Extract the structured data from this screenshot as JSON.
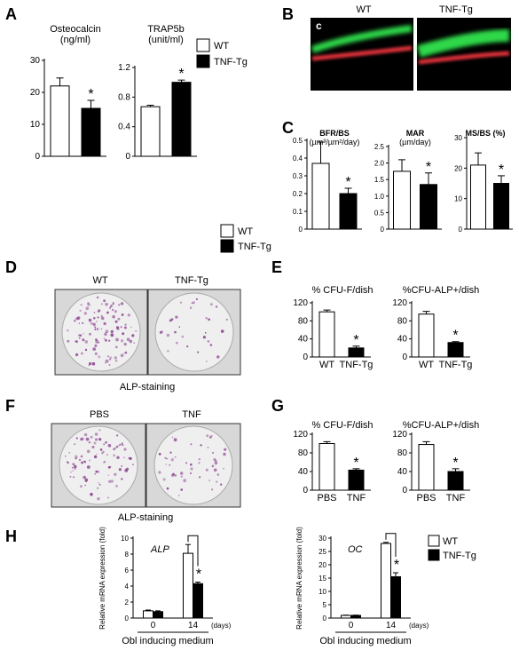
{
  "panels": {
    "A": "A",
    "B": "B",
    "C": "C",
    "D": "D",
    "E": "E",
    "F": "F",
    "G": "G",
    "H": "H"
  },
  "legend_top": {
    "items": [
      {
        "label": "WT",
        "fill": "#ffffff"
      },
      {
        "label": "TNF-Tg",
        "fill": "#000000"
      }
    ]
  },
  "legend_c": {
    "items": [
      {
        "label": "WT",
        "fill": "#ffffff"
      },
      {
        "label": "TNF-Tg",
        "fill": "#000000"
      }
    ]
  },
  "legend_h": {
    "items": [
      {
        "label": "WT",
        "fill": "#ffffff"
      },
      {
        "label": "TNF-Tg",
        "fill": "#000000"
      }
    ]
  },
  "micrograph_b": {
    "letter": "c",
    "left_label": "WT",
    "right_label": "TNF-Tg",
    "colors": {
      "green": "#2fd84a",
      "red": "#e0303a",
      "bg": "#000000"
    }
  },
  "plates_d": {
    "left_label": "WT",
    "right_label": "TNF-Tg",
    "caption": "ALP-staining",
    "dot_color": "#8a3f8f"
  },
  "plates_f": {
    "left_label": "PBS",
    "right_label": "TNF",
    "caption": "ALP-staining",
    "dot_color": "#8a3f8f"
  },
  "significance_marker": "*",
  "chart_data": [
    {
      "type": "bar",
      "panel": "A",
      "title": "Osteocalcin",
      "unit": "(ng/ml)",
      "categories": [
        "WT",
        "TNF-Tg"
      ],
      "values": [
        22,
        15
      ],
      "errors": [
        2.5,
        2.5
      ],
      "significant": [
        false,
        true
      ],
      "ylim": [
        0,
        30
      ],
      "yticks": [
        0,
        10,
        20,
        30
      ],
      "show_xlabels": false
    },
    {
      "type": "bar",
      "panel": "A",
      "title": "TRAP5b",
      "unit": "(unit/ml)",
      "categories": [
        "WT",
        "TNF-Tg"
      ],
      "values": [
        0.67,
        1.0
      ],
      "errors": [
        0.02,
        0.03
      ],
      "significant": [
        false,
        true
      ],
      "ylim": [
        0,
        1.2
      ],
      "yticks": [
        "0",
        "0.4",
        "0.8",
        "1.2"
      ],
      "show_xlabels": false
    },
    {
      "type": "bar",
      "panel": "C",
      "title": "BFR/BS",
      "unit": "(µm³/µm²/day)",
      "categories": [
        "WT",
        "TNF-Tg"
      ],
      "values": [
        0.37,
        0.2
      ],
      "errors": [
        0.12,
        0.03
      ],
      "significant": [
        false,
        true
      ],
      "ylim": [
        0,
        0.5
      ],
      "yticks": [
        "0",
        "0.1",
        "0.2",
        "0.3",
        "0.4",
        "0.5"
      ],
      "show_xlabels": false
    },
    {
      "type": "bar",
      "panel": "C",
      "title": "MAR",
      "unit": "(µm/day)",
      "categories": [
        "WT",
        "TNF-Tg"
      ],
      "values": [
        1.75,
        1.35
      ],
      "errors": [
        0.35,
        0.35
      ],
      "significant": [
        false,
        true
      ],
      "ylim": [
        0,
        2.5
      ],
      "yticks": [
        "0",
        "0.5",
        "1.0",
        "1.5",
        "2.0",
        "2.5"
      ],
      "show_xlabels": false
    },
    {
      "type": "bar",
      "panel": "C",
      "title": "MS/BS (%)",
      "unit": "",
      "categories": [
        "WT",
        "TNF-Tg"
      ],
      "values": [
        21,
        15
      ],
      "errors": [
        4,
        2.5
      ],
      "significant": [
        false,
        true
      ],
      "ylim": [
        0,
        30
      ],
      "yticks": [
        0,
        10,
        20,
        30
      ],
      "show_xlabels": false
    },
    {
      "type": "bar",
      "panel": "E",
      "title": "% CFU-F/dish",
      "unit": "",
      "categories": [
        "WT",
        "TNF-Tg"
      ],
      "values": [
        100,
        20
      ],
      "errors": [
        4,
        4
      ],
      "significant": [
        false,
        true
      ],
      "ylim": [
        0,
        120
      ],
      "yticks": [
        0,
        40,
        80,
        120
      ],
      "show_xlabels": true
    },
    {
      "type": "bar",
      "panel": "E",
      "title": "%CFU-ALP+/dish",
      "unit": "",
      "categories": [
        "WT",
        "TNF-Tg"
      ],
      "values": [
        95,
        32
      ],
      "errors": [
        6,
        2
      ],
      "significant": [
        false,
        true
      ],
      "ylim": [
        0,
        120
      ],
      "yticks": [
        0,
        40,
        80,
        120
      ],
      "show_xlabels": true
    },
    {
      "type": "bar",
      "panel": "G",
      "title": "% CFU-F/dish",
      "unit": "",
      "categories": [
        "PBS",
        "TNF"
      ],
      "values": [
        100,
        43
      ],
      "errors": [
        4,
        3
      ],
      "significant": [
        false,
        true
      ],
      "ylim": [
        0,
        120
      ],
      "yticks": [
        0,
        40,
        80,
        120
      ],
      "show_xlabels": true
    },
    {
      "type": "bar",
      "panel": "G",
      "title": "%CFU-ALP+/dish",
      "unit": "",
      "categories": [
        "PBS",
        "TNF"
      ],
      "values": [
        98,
        40
      ],
      "errors": [
        6,
        6
      ],
      "significant": [
        false,
        true
      ],
      "ylim": [
        0,
        120
      ],
      "yticks": [
        0,
        40,
        80,
        120
      ],
      "show_xlabels": true
    },
    {
      "type": "bar",
      "panel": "H",
      "title": "ALP",
      "ylabel": "Relative mRNA expression (fold)",
      "xlabel": "Obl inducing medium",
      "xunit": "(days)",
      "categories": [
        "0",
        "14"
      ],
      "series": [
        {
          "name": "WT",
          "values": [
            0.9,
            8.1
          ],
          "errors": [
            0.1,
            1.1
          ]
        },
        {
          "name": "TNF-Tg",
          "values": [
            0.8,
            4.3
          ],
          "errors": [
            0.1,
            0.2
          ]
        }
      ],
      "significant_group": 1,
      "ylim": [
        0,
        10
      ],
      "yticks": [
        0,
        2,
        4,
        6,
        8,
        10
      ]
    },
    {
      "type": "bar",
      "panel": "H",
      "title": "OC",
      "ylabel": "Relative mRNA expression (fold)",
      "xlabel": "Obl inducing medium",
      "xunit": "(days)",
      "categories": [
        "0",
        "14"
      ],
      "series": [
        {
          "name": "WT",
          "values": [
            1,
            28
          ],
          "errors": [
            0.1,
            0.4
          ]
        },
        {
          "name": "TNF-Tg",
          "values": [
            1,
            15.5
          ],
          "errors": [
            0.1,
            1.5
          ]
        }
      ],
      "significant_group": 1,
      "ylim": [
        0,
        30
      ],
      "yticks": [
        0,
        5,
        10,
        15,
        20,
        25,
        30
      ]
    }
  ]
}
